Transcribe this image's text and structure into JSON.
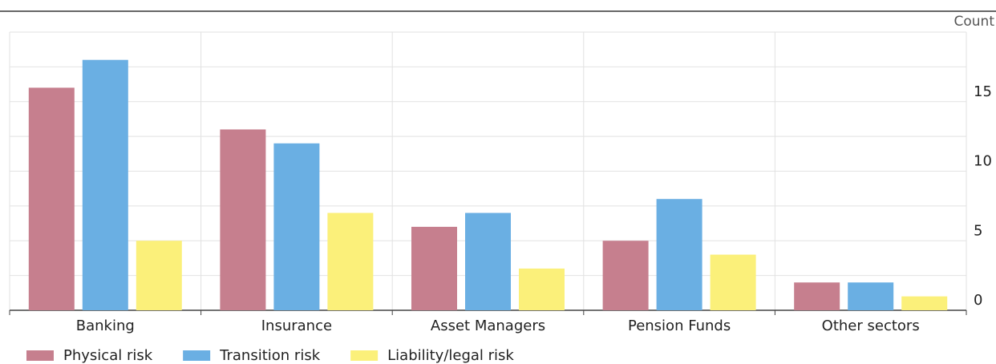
{
  "chart_data": {
    "type": "bar",
    "y_label": "Count",
    "categories": [
      "Banking",
      "Insurance",
      "Asset Managers",
      "Pension Funds",
      "Other sectors"
    ],
    "series": [
      {
        "name": "Physical risk",
        "color": "#c67f8e",
        "values": [
          16,
          13,
          6,
          5,
          2
        ]
      },
      {
        "name": "Transition risk",
        "color": "#6aafe3",
        "values": [
          18,
          12,
          7,
          8,
          2
        ]
      },
      {
        "name": "Liability/legal risk",
        "color": "#fbf07a",
        "values": [
          5,
          7,
          3,
          4,
          1
        ]
      }
    ],
    "ylim": [
      0,
      20
    ],
    "yticks": [
      0,
      5,
      10,
      15
    ],
    "minor_yticks": [
      2.5,
      7.5,
      12.5,
      17.5,
      20
    ],
    "grid": true,
    "legend": "bottom"
  }
}
